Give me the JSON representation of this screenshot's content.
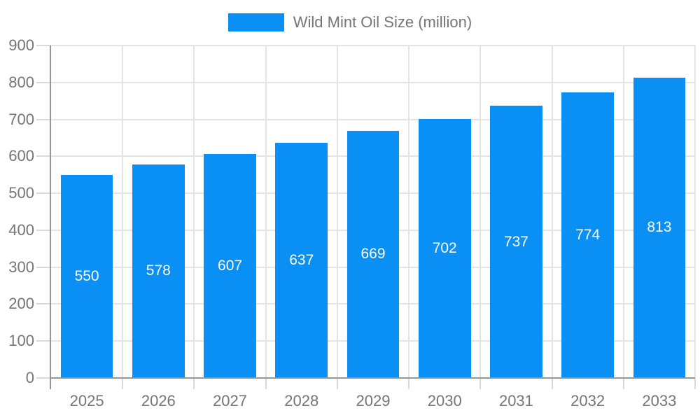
{
  "chart_data": {
    "type": "bar",
    "title": "",
    "legend": "Wild Mint Oil Size (million)",
    "legend_position": "top",
    "categories": [
      "2025",
      "2026",
      "2027",
      "2028",
      "2029",
      "2030",
      "2031",
      "2032",
      "2033"
    ],
    "values": [
      550,
      578,
      607,
      637,
      669,
      702,
      737,
      774,
      813
    ],
    "xlabel": "",
    "ylabel": "",
    "ylim": [
      0,
      900
    ],
    "yticks": [
      0,
      100,
      200,
      300,
      400,
      500,
      600,
      700,
      800,
      900
    ],
    "grid": true,
    "bar_label_position": "inside-center",
    "colors": {
      "bar": "#0A90F4",
      "bar_label": "#FFFFFF",
      "axis_line": "#969696",
      "gridline": "#E4E4E4",
      "tick": "#D9D9D9",
      "axis_text": "#757575",
      "legend_text": "#757575",
      "background": "#FFFFFF"
    }
  }
}
